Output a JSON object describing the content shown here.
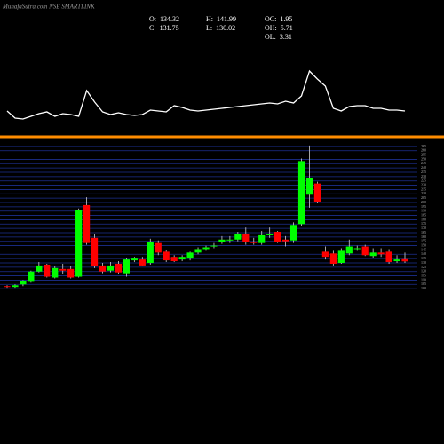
{
  "chart_data": {
    "type": "candlestick",
    "title": "MunafaSutra.com NSE SMARTLINK",
    "stats": [
      {
        "label": "O:",
        "value": 134.32
      },
      {
        "label": "C:",
        "value": 131.75
      },
      {
        "label": "H:",
        "value": 141.99
      },
      {
        "label": "L:",
        "value": 130.02
      },
      {
        "label": "OC:",
        "value": 1.95
      },
      {
        "label": "OH:",
        "value": 5.71
      },
      {
        "label": "OL:",
        "value": 3.31
      }
    ],
    "categories": [
      null,
      null,
      null,
      null,
      null,
      null,
      null,
      null,
      null,
      null,
      null,
      null,
      null,
      null,
      null,
      null,
      null,
      null,
      null,
      null,
      null,
      null,
      null,
      null,
      null,
      null,
      null,
      null,
      null,
      null,
      null,
      null,
      null,
      null,
      null,
      null,
      null,
      null,
      null,
      null,
      null,
      null,
      null,
      null,
      null,
      null,
      null,
      null,
      null,
      null,
      null
    ],
    "open": [
      103,
      102,
      105,
      108,
      120,
      128,
      113,
      123,
      123,
      114,
      197,
      159,
      127,
      121,
      129,
      118,
      133,
      134,
      130,
      153,
      143,
      137,
      134,
      135,
      142,
      146,
      149,
      154,
      156,
      157,
      164,
      154,
      153,
      162,
      166,
      157,
      156,
      175,
      209,
      222,
      143,
      141,
      130,
      141,
      146,
      149,
      138,
      142,
      143,
      132,
      134.32
    ],
    "high": [
      104,
      105,
      110,
      121,
      131,
      129,
      126,
      129,
      126,
      193,
      206,
      164,
      130,
      131,
      132,
      136,
      137,
      137,
      158,
      156,
      145,
      139,
      139,
      143,
      148,
      150,
      153,
      161,
      161,
      166,
      171,
      159,
      167,
      171,
      167,
      161,
      177,
      251,
      266,
      224,
      149,
      144,
      147,
      157,
      150,
      151,
      147,
      147,
      146,
      139,
      141.99
    ],
    "low": [
      101,
      101,
      103,
      107,
      119,
      113,
      112,
      117,
      112,
      113,
      151,
      124,
      118,
      119,
      117,
      114,
      131,
      126,
      128,
      139,
      131,
      131,
      132,
      133,
      140,
      144,
      147,
      152,
      153,
      155,
      151,
      151,
      151,
      159,
      153,
      149,
      153,
      173,
      194,
      199,
      134,
      127,
      129,
      139,
      144,
      138,
      136,
      137,
      129,
      130,
      130.02
    ],
    "close": [
      102,
      104,
      109,
      120,
      127,
      114,
      124,
      121,
      113,
      191,
      153,
      126,
      120,
      127,
      119,
      134,
      135,
      127,
      154,
      142,
      133,
      132,
      137,
      142,
      146,
      148,
      150,
      157,
      157,
      163,
      154,
      153,
      162,
      163,
      154,
      155,
      174,
      248,
      228,
      201,
      137,
      129,
      144,
      149,
      147,
      139,
      142,
      140,
      131,
      134,
      131.75
    ],
    "up_color": "#00ff00",
    "down_color": "#ff0000",
    "indicator": {
      "color": "#ffffff",
      "values": [
        25,
        17,
        16,
        19,
        22,
        24,
        19,
        22,
        21,
        19,
        48,
        35,
        24,
        21,
        23,
        21,
        20,
        21,
        26,
        25,
        24,
        31,
        29,
        26,
        25,
        26,
        27,
        28,
        29,
        30,
        31,
        32,
        33,
        34,
        33,
        36,
        34,
        42,
        70,
        61,
        53,
        28,
        25,
        30,
        31,
        31,
        28,
        28,
        26,
        26,
        25
      ]
    },
    "ylim": [
      95,
      270
    ],
    "yticks": [
      100,
      105,
      110,
      115,
      120,
      125,
      130,
      135,
      140,
      145,
      150,
      155,
      160,
      165,
      170,
      175,
      180,
      185,
      190,
      195,
      200,
      205,
      210,
      215,
      220,
      225,
      230,
      235,
      240,
      245,
      250,
      255,
      260,
      265
    ],
    "grid": true,
    "grid_color": "#1c2f8f",
    "separator_color": "#ff8c00"
  }
}
